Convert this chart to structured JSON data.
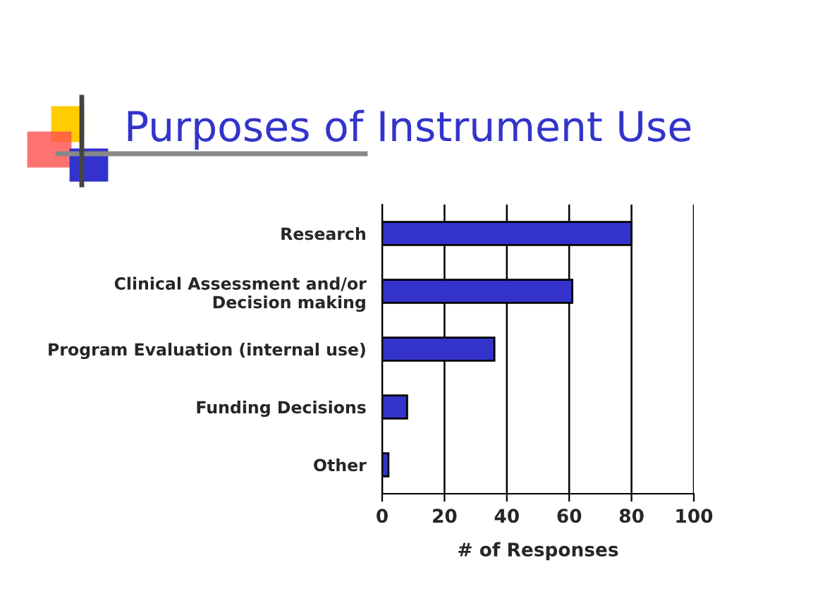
{
  "chart_data": {
    "type": "bar",
    "orientation": "horizontal",
    "title": "Purposes of Instrument Use",
    "categories": [
      "Research",
      "Clinical Assessment and/or\nDecision making",
      "Program Evaluation (internal use)",
      "Funding Decisions",
      "Other"
    ],
    "values": [
      80,
      61,
      36,
      8,
      2
    ],
    "color": "#3333cc",
    "xlabel": "# of Responses",
    "xlim": [
      0,
      100
    ],
    "xticks": [
      0,
      20,
      40,
      60,
      80,
      100
    ],
    "grid": "x",
    "legend": false
  }
}
